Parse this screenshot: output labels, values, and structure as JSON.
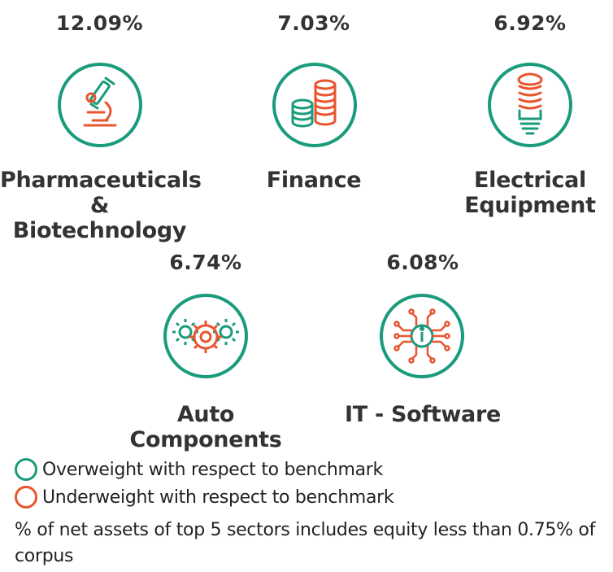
{
  "colors": {
    "overweight": "#1a9b7c",
    "underweight": "#e8552e",
    "text": "#333333"
  },
  "sectors": [
    {
      "percent": "12.09%",
      "name_line1": "Pharmaceuticals",
      "name_line2": "& Biotechnology",
      "icon": "microscope-icon",
      "weight": "overweight"
    },
    {
      "percent": "7.03%",
      "name_line1": "Finance",
      "name_line2": "",
      "icon": "coins-icon",
      "weight": "overweight"
    },
    {
      "percent": "6.92%",
      "name_line1": "Electrical",
      "name_line2": "Equipment",
      "icon": "light-bulb-icon",
      "weight": "overweight"
    },
    {
      "percent": "6.74%",
      "name_line1": "Auto",
      "name_line2": "Components",
      "icon": "gears-icon",
      "weight": "overweight"
    },
    {
      "percent": "6.08%",
      "name_line1": "IT - Software",
      "name_line2": "",
      "icon": "circuit-chip-icon",
      "weight": "overweight"
    }
  ],
  "legend": {
    "overweight_label": "Overweight with respect to benchmark",
    "underweight_label": "Underweight with respect to benchmark"
  },
  "footnote": "% of net assets of top 5 sectors includes equity less than 0.75% of corpus"
}
